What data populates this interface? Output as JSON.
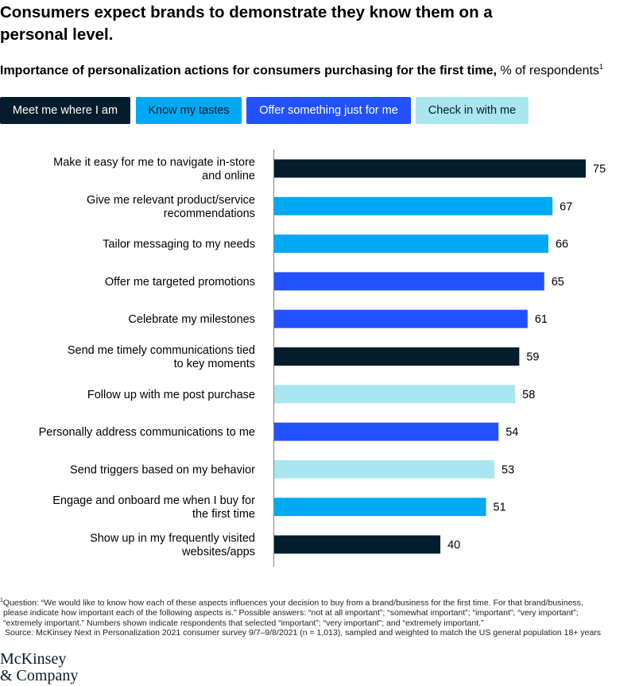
{
  "header": {
    "title": "Consumers expect brands to demonstrate they know them on a personal level.",
    "subtitle_bold": "Importance of personalization actions for consumers purchasing for the first time,",
    "subtitle_rest": " % of respondents",
    "subtitle_sup": "1"
  },
  "legend": [
    {
      "label": "Meet me where I am",
      "color": "#051c2c",
      "text_color": "#ffffff"
    },
    {
      "label": "Know my tastes",
      "color": "#00a9f4",
      "text_color": "#051c2c"
    },
    {
      "label": "Offer something just for me",
      "color": "#2251ff",
      "text_color": "#ffffff"
    },
    {
      "label": "Check in with me",
      "color": "#aae6f0",
      "text_color": "#051c2c"
    }
  ],
  "chart_data": {
    "type": "bar",
    "orientation": "horizontal",
    "categories": [
      "Make it easy for me to navigate in-store and online",
      "Give me relevant product/service recommendations",
      "Tailor messaging to my needs",
      "Offer me targeted promotions",
      "Celebrate my milestones",
      "Send me timely communications tied to key moments",
      "Follow up with me post purchase",
      "Personally address communications to me",
      "Send triggers based on my behavior",
      "Engage and onboard me when I buy for the first time",
      "Show up in my frequently visited websites/apps"
    ],
    "label_lines": [
      [
        "Make it easy for me to navigate in-store",
        "and online"
      ],
      [
        "Give me relevant product/service",
        "recommendations"
      ],
      [
        "Tailor messaging to my needs"
      ],
      [
        "Offer me targeted promotions"
      ],
      [
        "Celebrate my milestones"
      ],
      [
        "Send me timely communications tied",
        "to key moments"
      ],
      [
        "Follow up with me post purchase"
      ],
      [
        "Personally address communications to me"
      ],
      [
        "Send triggers based on my behavior"
      ],
      [
        "Engage and onboard me when I buy for",
        "the first time"
      ],
      [
        "Show up in my frequently visited",
        "websites/apps"
      ]
    ],
    "values": [
      75,
      67,
      66,
      65,
      61,
      59,
      58,
      54,
      53,
      51,
      40
    ],
    "groups": [
      0,
      1,
      1,
      2,
      2,
      0,
      3,
      2,
      3,
      1,
      0
    ],
    "xlim": [
      0,
      80
    ],
    "grid": false
  },
  "footnote": {
    "sup": "1",
    "line1": "Question: “We would like to know how each of these aspects influences your decision to buy from a brand/business for the first time. For that brand/business,",
    "line2": "please indicate how important each of the following aspects is.” Possible answers: “not at all important”; “somewhat important”; “important”; “very important”;",
    "line3": "“extremely important.” Numbers shown indicate respondents that selected “important”; “very important”; and “extremely important.”",
    "source": "Source: McKinsey Next in Personalization 2021 consumer survey 9/7–9/8/2021 (n = 1,013), sampled and weighted to match the US general population 18+ years"
  },
  "logo": {
    "line1": "McKinsey",
    "line2": "& Company"
  }
}
